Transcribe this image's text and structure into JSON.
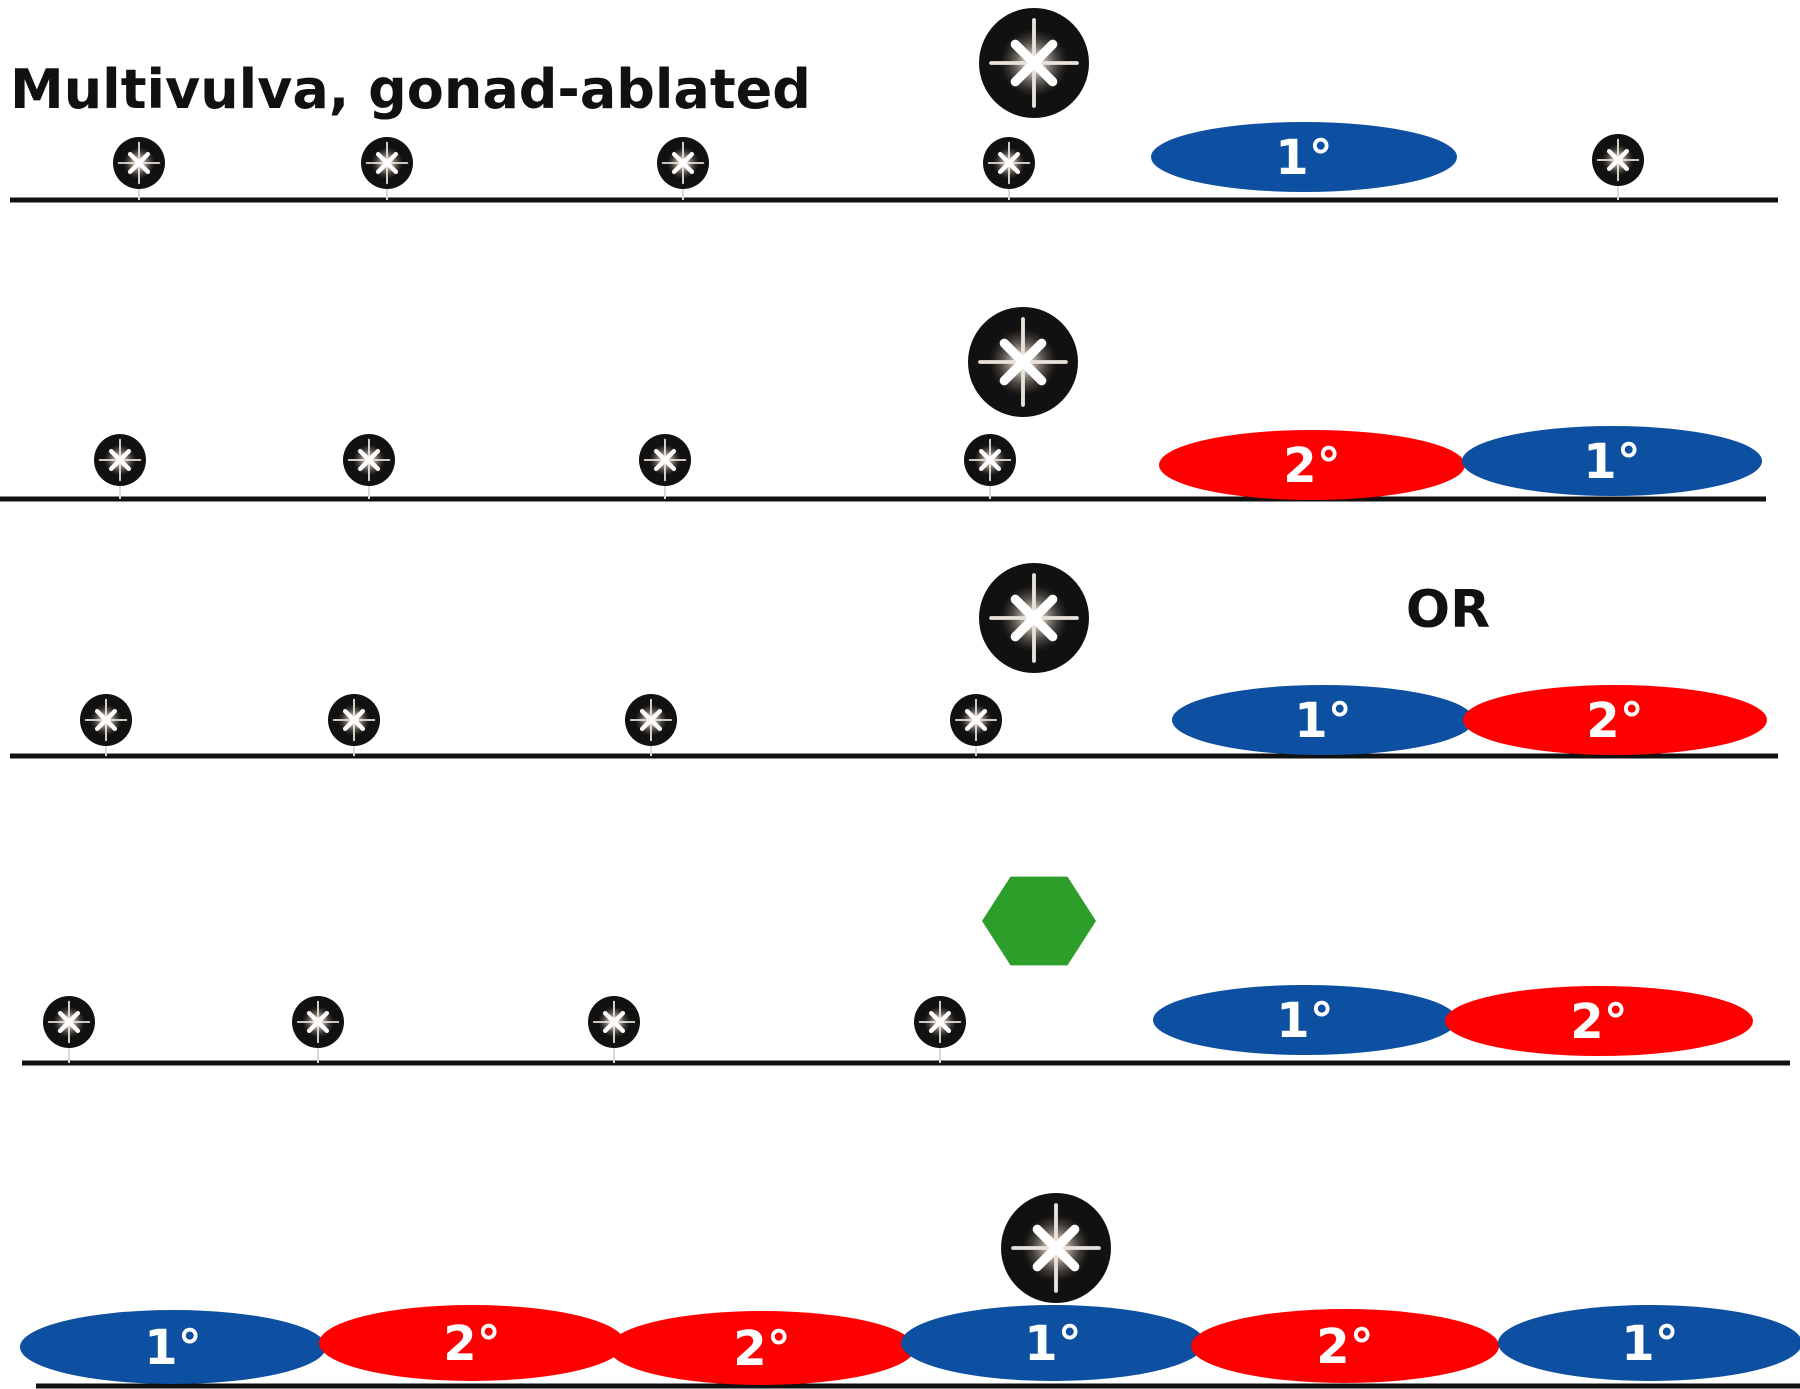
{
  "title": "Multivulva, gonad-ablated",
  "or_label": "OR",
  "colors": {
    "primary": "#0d4fa0",
    "secondary": "#ff0000",
    "hexagon": "#2e9e2a",
    "line": "#111111",
    "cell": "#111111",
    "text_light": "#ffffff"
  },
  "rows": [
    {
      "id": "row-1",
      "signal": "star",
      "fates": [
        {
          "label": "1°",
          "type": "primary"
        }
      ]
    },
    {
      "id": "row-2",
      "signal": "star",
      "fates": [
        {
          "label": "2°",
          "type": "secondary"
        },
        {
          "label": "1°",
          "type": "primary"
        }
      ]
    },
    {
      "id": "row-3",
      "signal": "star",
      "fates": [
        {
          "label": "1°",
          "type": "primary"
        },
        {
          "label": "2°",
          "type": "secondary"
        }
      ]
    },
    {
      "id": "row-4",
      "signal": "hexagon",
      "fates": [
        {
          "label": "1°",
          "type": "primary"
        },
        {
          "label": "2°",
          "type": "secondary"
        }
      ]
    },
    {
      "id": "row-5",
      "signal": "star",
      "fates": [
        {
          "label": "1°",
          "type": "primary"
        },
        {
          "label": "2°",
          "type": "secondary"
        },
        {
          "label": "2°",
          "type": "secondary"
        },
        {
          "label": "1°",
          "type": "primary"
        },
        {
          "label": "2°",
          "type": "secondary"
        },
        {
          "label": "1°",
          "type": "primary"
        }
      ]
    }
  ]
}
